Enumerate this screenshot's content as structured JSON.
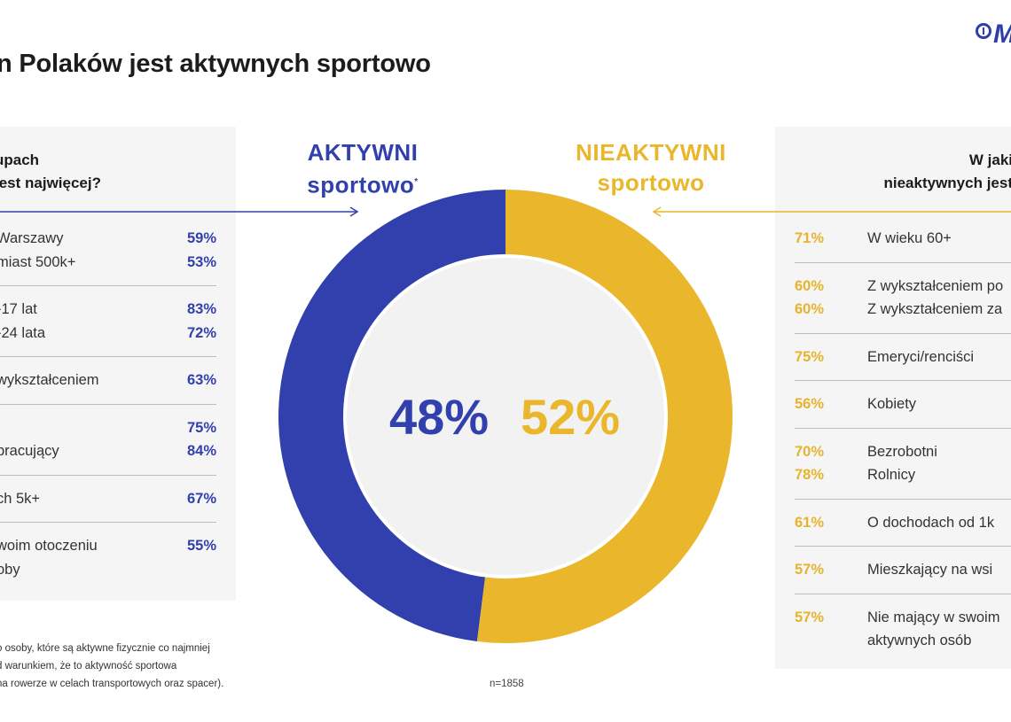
{
  "title": "n Polaków jest aktywnych sportowo",
  "logo_text": "M",
  "colors": {
    "active": "#3240ad",
    "inactive": "#eab62b",
    "panel": "#f5f5f5"
  },
  "left_panel": {
    "header": [
      "upach",
      "jest najwięcej?"
    ],
    "groups": [
      {
        "rows": [
          {
            "label": "Warszawy",
            "value": "59%"
          },
          {
            "label": "miast 500k+",
            "value": "53%"
          }
        ]
      },
      {
        "rows": [
          {
            "label": "-17 lat",
            "value": "83%"
          },
          {
            "label": "-24 lata",
            "value": "72%"
          }
        ]
      },
      {
        "rows": [
          {
            "label": "wykształceniem",
            "value": "63%"
          }
        ]
      },
      {
        "rows": [
          {
            "label": "",
            "value": "75%"
          },
          {
            "label": "pracujący",
            "value": "84%"
          }
        ]
      },
      {
        "rows": [
          {
            "label": "ch 5k+",
            "value": "67%"
          }
        ]
      },
      {
        "rows": [
          {
            "label": "woim otoczeniu",
            "value": "55%"
          },
          {
            "label": "oby",
            "value": ""
          }
        ]
      }
    ]
  },
  "right_panel": {
    "header": [
      "W jaki",
      "nieaktywnych jest"
    ],
    "groups": [
      {
        "rows": [
          {
            "value": "71%",
            "label": "W wieku 60+"
          }
        ]
      },
      {
        "rows": [
          {
            "value": "60%",
            "label": "Z wykształceniem po"
          },
          {
            "value": "60%",
            "label": "Z wykształceniem za"
          }
        ]
      },
      {
        "rows": [
          {
            "value": "75%",
            "label": "Emeryci/renciści"
          }
        ]
      },
      {
        "rows": [
          {
            "value": "56%",
            "label": "Kobiety"
          }
        ]
      },
      {
        "rows": [
          {
            "value": "70%",
            "label": "Bezrobotni"
          },
          {
            "value": "78%",
            "label": "Rolnicy"
          }
        ]
      },
      {
        "rows": [
          {
            "value": "61%",
            "label": "O dochodach od 1k"
          }
        ]
      },
      {
        "rows": [
          {
            "value": "57%",
            "label": "Mieszkający na wsi"
          }
        ]
      },
      {
        "rows": [
          {
            "value": "57%",
            "label": "Nie mający w swoim"
          },
          {
            "value": "",
            "label": "aktywnych osób"
          }
        ]
      }
    ]
  },
  "active_label": {
    "line1": "AKTYWNI",
    "line2": "sportowo",
    "marker": "*"
  },
  "inactive_label": {
    "line1": "NIEAKTYWNI",
    "line2": "sportowo"
  },
  "footnote": [
    "o osoby, które są aktywne fizycznie co najmniej",
    "d warunkiem, że to aktywność sportowa",
    "na rowerze w celach transportowych oraz spacer)."
  ],
  "sample": "n=1858",
  "chart_data": {
    "type": "pie",
    "donut": true,
    "categories": [
      "AKTYWNI sportowo",
      "NIEAKTYWNI sportowo"
    ],
    "values": [
      48,
      52
    ],
    "labels": [
      "48%",
      "52%"
    ],
    "colors": [
      "#3240ad",
      "#eab62b"
    ]
  }
}
